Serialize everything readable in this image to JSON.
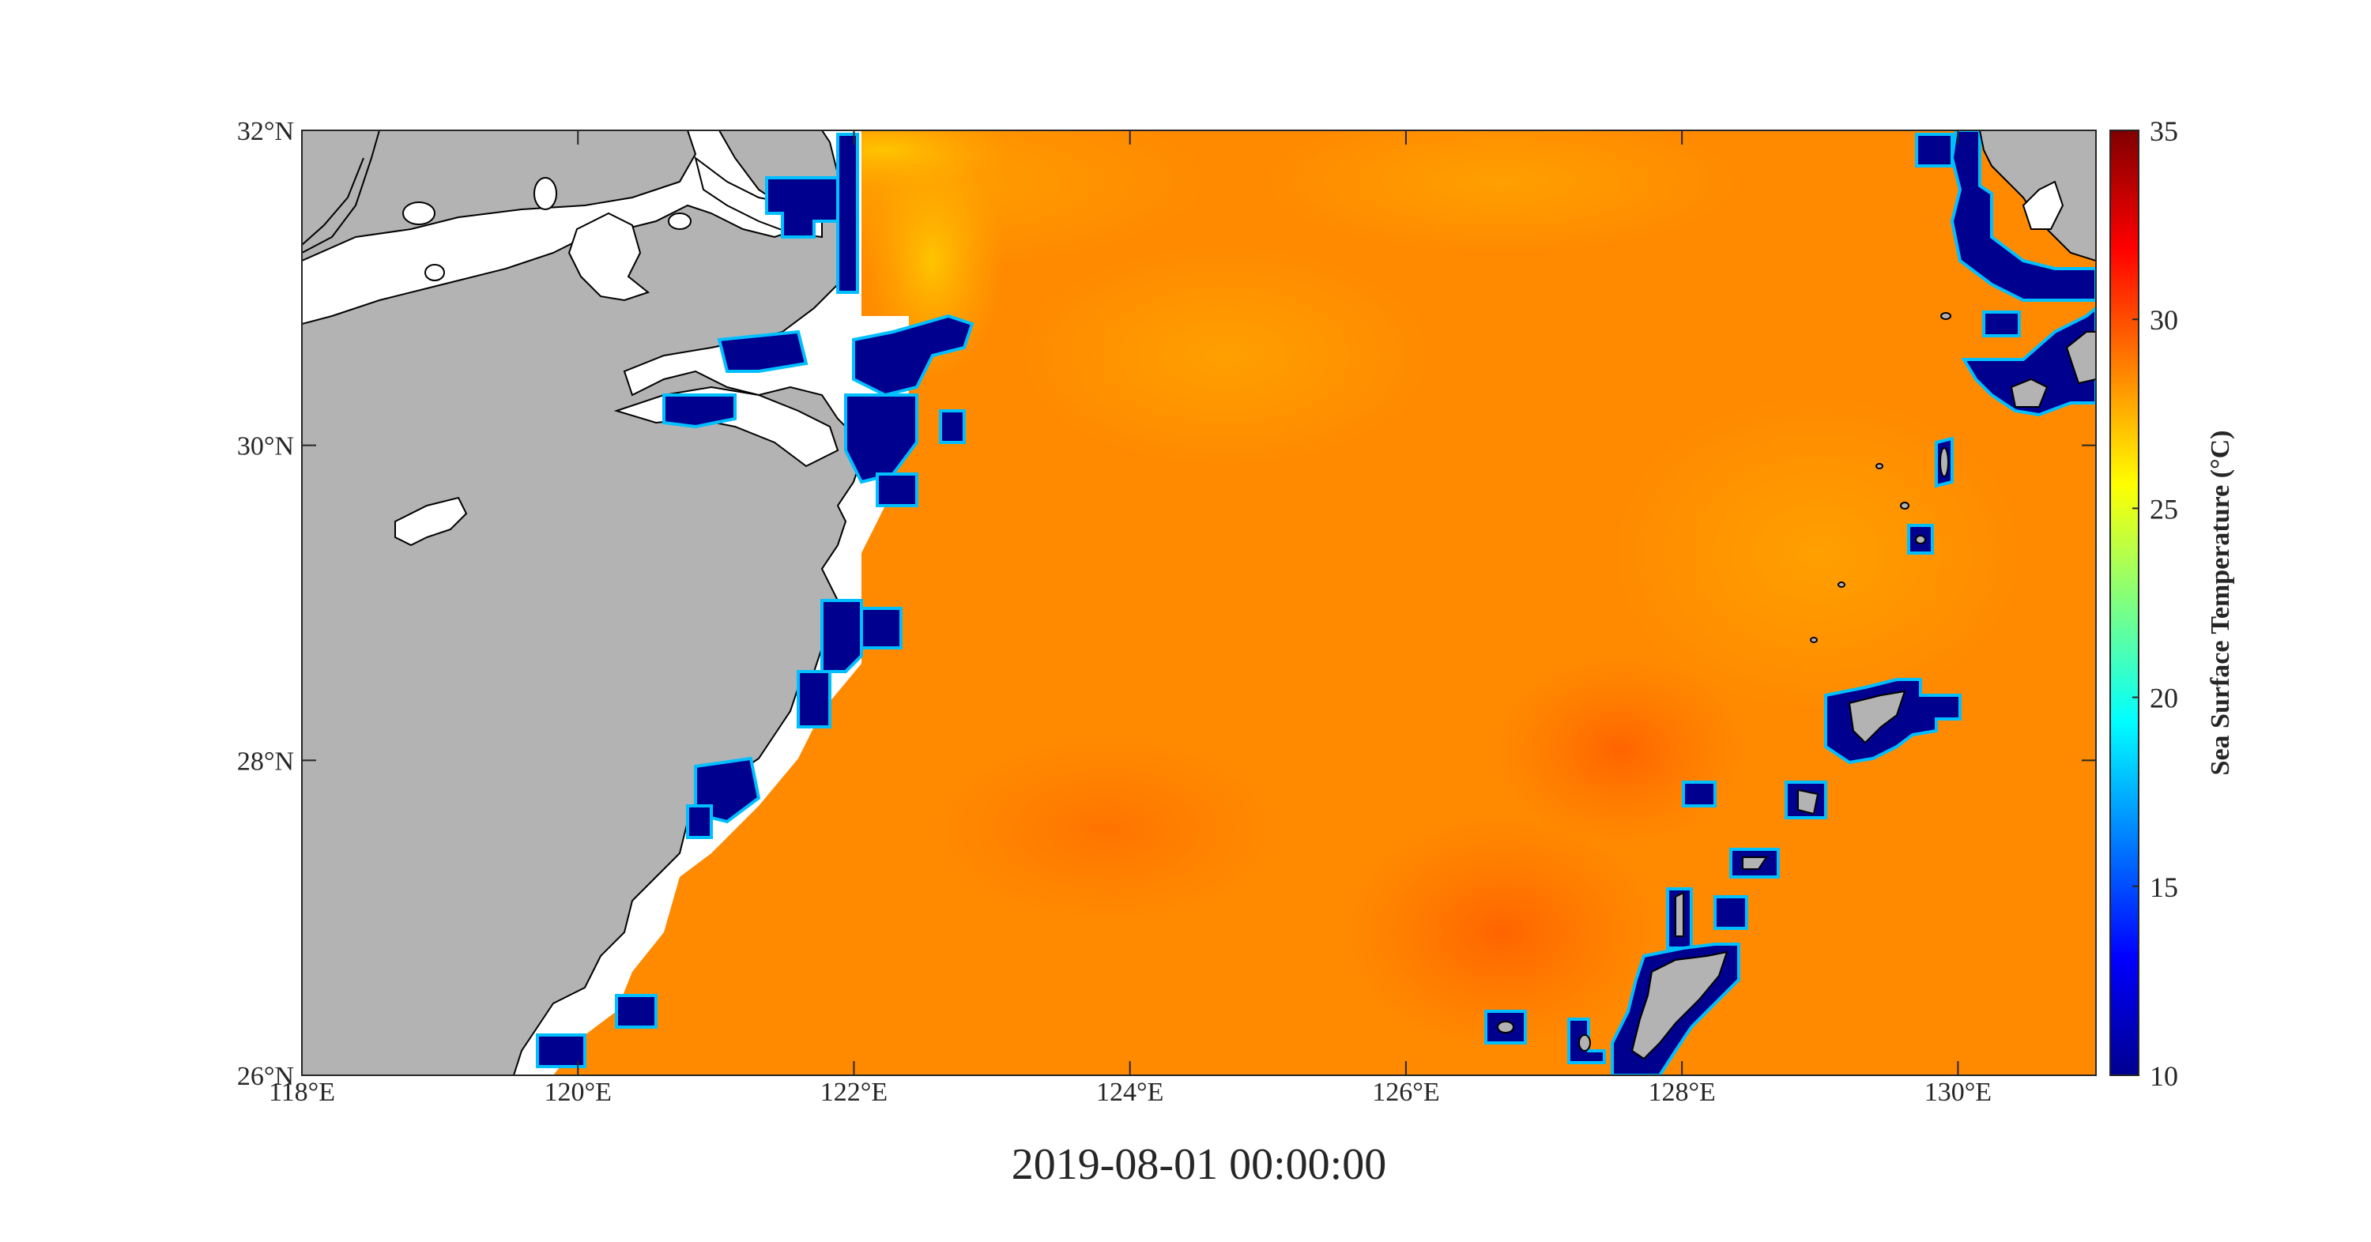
{
  "map": {
    "x_ticks": [
      {
        "lon": 118,
        "label": "118°E"
      },
      {
        "lon": 120,
        "label": "120°E"
      },
      {
        "lon": 122,
        "label": "122°E"
      },
      {
        "lon": 124,
        "label": "124°E"
      },
      {
        "lon": 126,
        "label": "126°E"
      },
      {
        "lon": 128,
        "label": "128°E"
      },
      {
        "lon": 130,
        "label": "130°E"
      }
    ],
    "y_ticks": [
      {
        "lat": 26,
        "label": "26°N"
      },
      {
        "lat": 28,
        "label": "28°N"
      },
      {
        "lat": 30,
        "label": "30°N"
      },
      {
        "lat": 32,
        "label": "32°N"
      }
    ],
    "lon_range": [
      118,
      131
    ],
    "lat_range": [
      26,
      32
    ],
    "timestamp": "2019-08-01 00:00:00",
    "colors": {
      "land": "#b3b3b3",
      "sea_dominant": "#ff8c00",
      "coastal_cold": "#00008f",
      "masked_coast": "#ffffff"
    }
  },
  "colorbar": {
    "title": "Sea Surface Temperature (°C)",
    "range": [
      10,
      35
    ],
    "ticks": [
      {
        "value": 10,
        "label": "10"
      },
      {
        "value": 15,
        "label": "15"
      },
      {
        "value": 20,
        "label": "20"
      },
      {
        "value": 25,
        "label": "25"
      },
      {
        "value": 30,
        "label": "30"
      },
      {
        "value": 35,
        "label": "35"
      }
    ],
    "colormap": "jet"
  }
}
